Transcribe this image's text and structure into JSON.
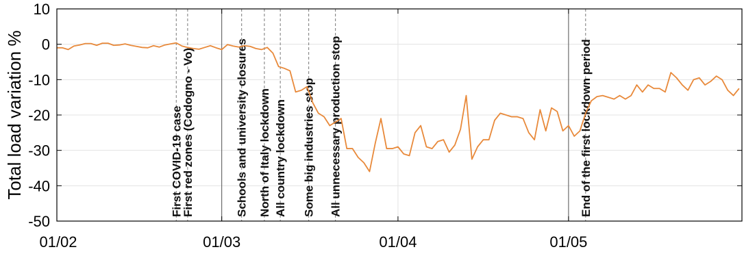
{
  "chart_data": {
    "type": "line",
    "title": "",
    "xlabel": "",
    "ylabel": "Total load variation %",
    "xlim": [
      "01/02",
      "30/05"
    ],
    "ylim": [
      -50,
      10
    ],
    "yticks": [
      10,
      0,
      -10,
      -20,
      -30,
      -40,
      -50
    ],
    "yticks_labels": [
      "10",
      "0",
      "-10",
      "-20",
      "-30",
      "-40",
      "-50"
    ],
    "xticks": [
      {
        "label": "01/02",
        "day": 0
      },
      {
        "label": "01/03",
        "day": 29
      },
      {
        "label": "01/04",
        "day": 60
      },
      {
        "label": "01/05",
        "day": 90
      }
    ],
    "grid": true,
    "line_color": "#e8893a",
    "series": [
      {
        "x_start": "01/02",
        "x_step": "1 day",
        "values": [
          -1,
          -1,
          -1.5,
          -0.5,
          -0.2,
          0.2,
          0.2,
          -0.3,
          0.3,
          0.3,
          -0.3,
          -0.2,
          0.1,
          -0.3,
          -0.6,
          -0.9,
          -1,
          -0.4,
          -0.8,
          -0.2,
          0.1,
          0.4,
          -0.5,
          -0.9,
          -1.2,
          -1.4,
          -0.9,
          -0.4,
          -1,
          -1.5,
          -0.1,
          -0.5,
          -0.8,
          -0.4,
          -0.6,
          -1.2,
          -1.5,
          -0.9,
          -2.5,
          -6.3,
          -6.8,
          -7.5,
          -13.5,
          -13,
          -12,
          -16.5,
          -19.5,
          -20.5,
          -23,
          -22,
          -21,
          -29.5,
          -29.5,
          -32,
          -33.5,
          -36,
          -28,
          -21,
          -29.5,
          -29.5,
          -29,
          -31,
          -31.5,
          -25,
          -23,
          -29,
          -29.5,
          -27.5,
          -27,
          -30.5,
          -28.5,
          -24,
          -14.5,
          -32.5,
          -29,
          -27,
          -27,
          -21.5,
          -19.5,
          -20,
          -20.5,
          -20.5,
          -21,
          -25,
          -27,
          -18.5,
          -24.5,
          -18,
          -19,
          -24.5,
          -23,
          -26,
          -24.5,
          -19.5,
          -16,
          -14.8,
          -14.5,
          -15,
          -15.5,
          -14.5,
          -15.5,
          -14.5,
          -11.5,
          -13.5,
          -11.5,
          -12.5,
          -12.5,
          -13.5,
          -8,
          -9.5,
          -11.5,
          -13,
          -10,
          -9.5,
          -11.5,
          -10.5,
          -9,
          -10,
          -13,
          -14.5,
          -12.5
        ]
      }
    ],
    "annotations": [
      {
        "text": "First COVID-19 case",
        "day": 21
      },
      {
        "text": "First red zones (Codogno - Vo)",
        "day": 23
      },
      {
        "text": "Schools and university closures",
        "day": 32.5
      },
      {
        "text": "North of Italy lockdown",
        "day": 36.5
      },
      {
        "text": "All country lockdown",
        "day": 39.3
      },
      {
        "text": "Some big industries stop",
        "day": 44.3
      },
      {
        "text": "All unnecessary production stop",
        "day": 49
      },
      {
        "text": "End of the first lockdown period",
        "day": 93
      }
    ]
  }
}
